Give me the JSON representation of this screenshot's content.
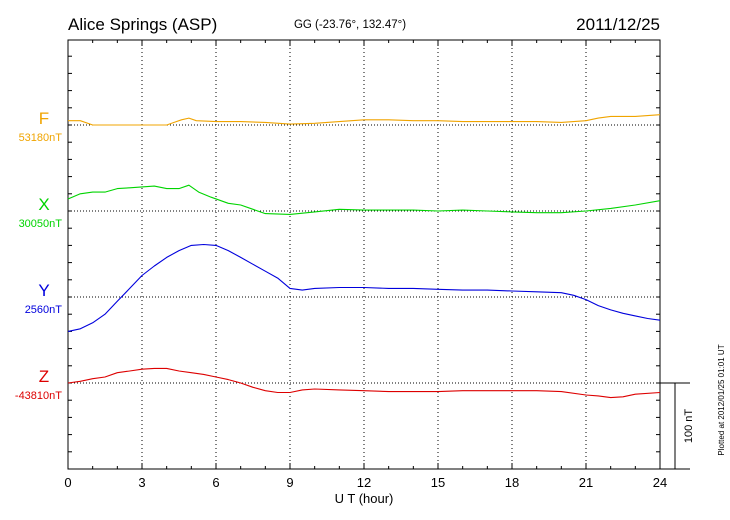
{
  "header": {
    "station": "Alice Springs (ASP)",
    "coords": "GG (-23.76°, 132.47°)",
    "date": "2011/12/25"
  },
  "footer": {
    "plotted": "Plotted at 2012/01/25 01:01 UT"
  },
  "chart_data": {
    "type": "line",
    "xlabel": "U T (hour)",
    "xlim": [
      0,
      24
    ],
    "x_ticks": [
      "0",
      "3",
      "6",
      "9",
      "12",
      "15",
      "18",
      "21",
      "24"
    ],
    "y_units": "nT (offset from baseline)",
    "grid": true,
    "scale_bar": {
      "label": "100 nT",
      "value": 100
    },
    "series": [
      {
        "name": "F",
        "color": "#f0a400",
        "baseline_label": "53180nT",
        "baseline": 53180,
        "x": [
          0,
          0.5,
          1,
          1.5,
          2,
          2.5,
          3,
          3.5,
          4,
          4.3,
          4.6,
          4.9,
          5.2,
          6,
          7,
          8,
          9,
          10,
          11,
          12,
          13,
          14,
          15,
          16,
          17,
          18,
          19,
          20,
          21,
          21.5,
          22,
          23,
          24
        ],
        "values": [
          5,
          5,
          0,
          0,
          0,
          0,
          0,
          0,
          0,
          3,
          6,
          8,
          5,
          4,
          4,
          3,
          1,
          2,
          4,
          6,
          6,
          5,
          5,
          4,
          4,
          4,
          4,
          3,
          5,
          8,
          10,
          10,
          12
        ]
      },
      {
        "name": "X",
        "color": "#00d400",
        "baseline_label": "30050nT",
        "baseline": 30050,
        "x": [
          0,
          0.5,
          1,
          1.5,
          2,
          2.5,
          3,
          3.5,
          4,
          4.5,
          4.9,
          5.3,
          5.8,
          6.5,
          7,
          7.5,
          8,
          9,
          10,
          11,
          12,
          13,
          14,
          15,
          16,
          17,
          18,
          19,
          20,
          21,
          22,
          23,
          24
        ],
        "values": [
          14,
          20,
          22,
          22,
          26,
          27,
          28,
          29,
          26,
          26,
          30,
          22,
          16,
          9,
          7,
          2,
          -3,
          -4,
          -1,
          2,
          1,
          1,
          1,
          0,
          1,
          0,
          -1,
          -2,
          -2,
          0,
          3,
          7,
          12
        ]
      },
      {
        "name": "Y",
        "color": "#0000dd",
        "baseline_label": "2560nT",
        "baseline": 2560,
        "x": [
          0,
          0.5,
          1,
          1.5,
          2,
          2.5,
          3,
          3.5,
          4,
          4.5,
          5,
          5.5,
          6,
          6.5,
          7,
          7.5,
          8,
          8.5,
          9,
          9.5,
          10,
          11,
          12,
          13,
          14,
          15,
          16,
          17,
          18,
          19,
          20,
          20.5,
          21,
          21.5,
          22,
          22.5,
          23,
          23.5,
          24
        ],
        "values": [
          -40,
          -37,
          -30,
          -20,
          -5,
          10,
          25,
          36,
          46,
          54,
          60,
          61,
          60,
          54,
          46,
          38,
          30,
          22,
          10,
          8,
          10,
          11,
          11,
          10,
          10,
          9,
          8,
          8,
          7,
          6,
          5,
          2,
          -3,
          -10,
          -15,
          -19,
          -22,
          -25,
          -27
        ]
      },
      {
        "name": "Z",
        "color": "#dd0000",
        "baseline_label": "-43810nT",
        "baseline": -43810,
        "x": [
          0,
          0.5,
          1,
          1.5,
          2,
          2.5,
          3,
          3.5,
          4,
          4.5,
          5,
          5.5,
          6,
          6.5,
          7,
          7.5,
          8,
          8.5,
          9,
          9.5,
          10,
          11,
          12,
          13,
          14,
          15,
          16,
          17,
          18,
          19,
          20,
          21,
          21.5,
          22,
          22.5,
          23,
          24
        ],
        "values": [
          0,
          2,
          5,
          7,
          12,
          14,
          16,
          17,
          17,
          14,
          12,
          10,
          7,
          4,
          0,
          -5,
          -9,
          -11,
          -11,
          -8,
          -7,
          -8,
          -9,
          -10,
          -10,
          -10,
          -9,
          -9,
          -9,
          -9,
          -10,
          -14,
          -15,
          -17,
          -16,
          -13,
          -11
        ]
      }
    ]
  }
}
